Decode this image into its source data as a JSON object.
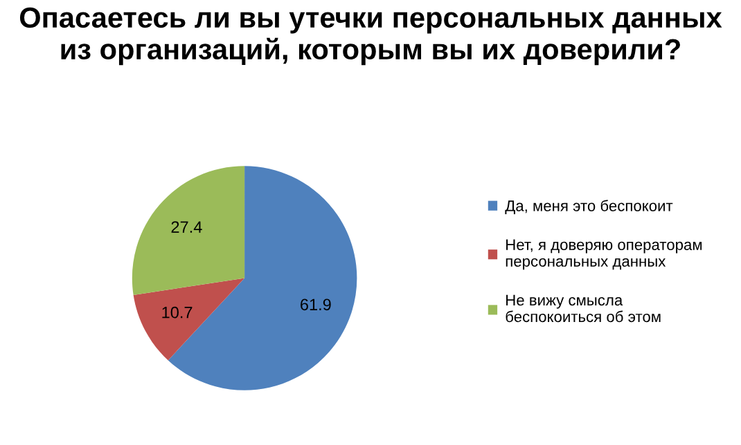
{
  "chart_data": {
    "type": "pie",
    "title": "Опасаетесь ли вы утечки персональных данных из организаций, которым вы их доверили?",
    "categories": [
      "Да, меня это беспокоит",
      "Нет, я доверяю операторам\nперсональных данных",
      "Не вижу смысла\nбеспокоиться об этом"
    ],
    "values": [
      61.9,
      10.7,
      27.4
    ],
    "colors": [
      "#4f81bd",
      "#c0504d",
      "#9bbb59"
    ],
    "data_labels": true,
    "legend": "right"
  }
}
